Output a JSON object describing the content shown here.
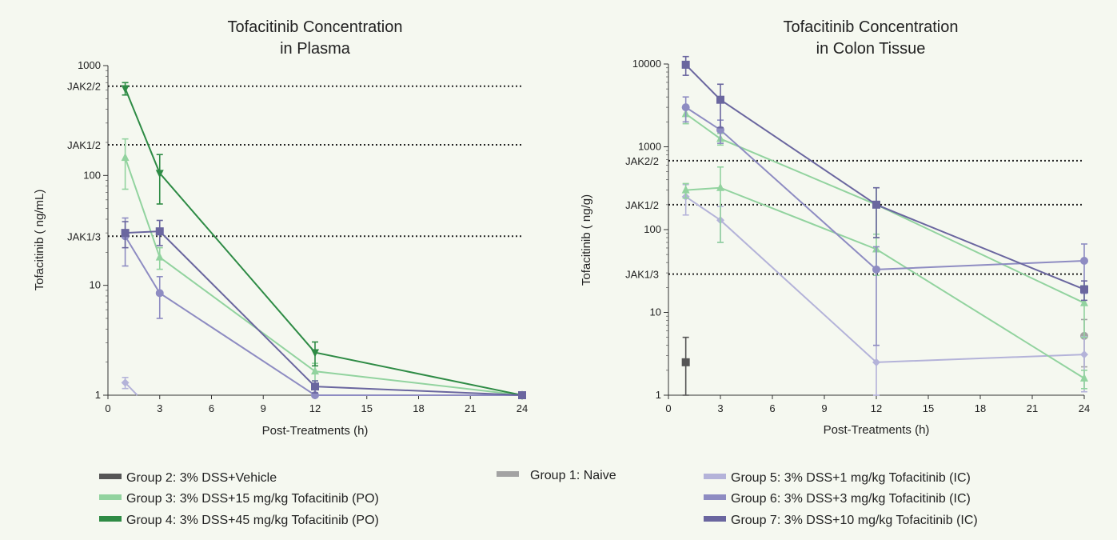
{
  "colors": {
    "group1": "#a3a3a3",
    "group2": "#555555",
    "group3": "#92d39f",
    "group4": "#2e8b45",
    "group5": "#b4b3d9",
    "group6": "#8e8cc2",
    "group7": "#6a669f"
  },
  "legend": [
    {
      "id": "group2",
      "label": "Group 2: 3% DSS+Vehicle"
    },
    {
      "id": "group3",
      "label": "Group 3: 3% DSS+15 mg/kg Tofacitinib (PO)"
    },
    {
      "id": "group4",
      "label": "Group 4: 3% DSS+45 mg/kg Tofacitinib (PO)"
    },
    {
      "id": "group1",
      "label": "Group 1: Naive"
    },
    {
      "id": "group5",
      "label": "Group 5: 3% DSS+1 mg/kg Tofacitinib (IC)"
    },
    {
      "id": "group6",
      "label": "Group 6: 3% DSS+3 mg/kg Tofacitinib (IC)"
    },
    {
      "id": "group7",
      "label": "Group 7: 3% DSS+10 mg/kg Tofacitinib (IC)"
    }
  ],
  "chart_data": [
    {
      "type": "line",
      "title": [
        "Tofacitinib Concentration",
        "in Plasma"
      ],
      "xlabel": "Post-Treatments (h)",
      "ylabel": "Tofacitinib ( ng/mL)",
      "xlim": [
        0,
        24
      ],
      "xticks": [
        0,
        3,
        6,
        9,
        12,
        15,
        18,
        21,
        24
      ],
      "ylim": [
        1,
        1000
      ],
      "yscale": "log",
      "yticks": [
        {
          "value": 1,
          "label": "1"
        },
        {
          "value": 10,
          "label": "10"
        },
        {
          "value": 100,
          "label": "100"
        },
        {
          "value": 1000,
          "label": "1000"
        }
      ],
      "reference_lines": [
        {
          "label": "JAK2/2",
          "value": 650
        },
        {
          "label": "JAK1/2",
          "value": 190
        },
        {
          "label": "JAK1/3",
          "value": 28
        }
      ],
      "series": [
        {
          "id": "group5",
          "marker": "diamond",
          "x": [
            1,
            1.7
          ],
          "y": [
            1.3,
            1.0
          ],
          "err": [
            0.15,
            null
          ]
        },
        {
          "id": "group3",
          "marker": "triangle",
          "x": [
            1,
            3,
            12,
            24
          ],
          "y": [
            145,
            18,
            1.65,
            1.0
          ],
          "err": [
            70,
            4,
            0.3,
            null
          ]
        },
        {
          "id": "group4",
          "marker": "triangle-down",
          "x": [
            1,
            3,
            12,
            24
          ],
          "y": [
            620,
            105,
            2.45,
            1.0
          ],
          "err": [
            80,
            50,
            0.6,
            null
          ]
        },
        {
          "id": "group6",
          "marker": "circle",
          "x": [
            1,
            3,
            12,
            24
          ],
          "y": [
            28,
            8.5,
            1.0,
            1.0
          ],
          "err": [
            13,
            3.5,
            null,
            null
          ]
        },
        {
          "id": "group7",
          "marker": "square",
          "x": [
            1,
            3,
            12,
            24
          ],
          "y": [
            30,
            31,
            1.2,
            1.0
          ],
          "err": [
            8,
            8,
            0.15,
            null
          ]
        }
      ]
    },
    {
      "type": "line",
      "title": [
        "Tofacitinib Concentration",
        "in Colon Tissue"
      ],
      "xlabel": "Post-Treatments (h)",
      "ylabel": "Tofacitinib ( ng/g)",
      "xlim": [
        0,
        24
      ],
      "xticks": [
        0,
        3,
        6,
        9,
        12,
        15,
        18,
        21,
        24
      ],
      "ylim": [
        1,
        10000
      ],
      "yscale": "log",
      "yticks": [
        {
          "value": 1,
          "label": "1"
        },
        {
          "value": 10,
          "label": "10"
        },
        {
          "value": 100,
          "label": "100"
        },
        {
          "value": 1000,
          "label": "1000"
        },
        {
          "value": 10000,
          "label": "10000"
        }
      ],
      "reference_lines": [
        {
          "label": "JAK2/2",
          "value": 680
        },
        {
          "label": "JAK1/2",
          "value": 200
        },
        {
          "label": "JAK1/3",
          "value": 29
        }
      ],
      "series": [
        {
          "id": "group2",
          "marker": "square",
          "x": [
            1
          ],
          "y": [
            2.5
          ],
          "err": [
            2.5
          ],
          "line": false
        },
        {
          "id": "group1",
          "marker": "circle",
          "x": [
            24
          ],
          "y": [
            5.2
          ],
          "err": [
            3
          ],
          "line": false
        },
        {
          "id": "group5",
          "marker": "diamond",
          "x": [
            1,
            3,
            12,
            24
          ],
          "y": [
            250,
            130,
            2.5,
            3.1
          ],
          "err": [
            100,
            60,
            1.5,
            2
          ]
        },
        {
          "id": "group3",
          "marker": "triangle",
          "x": [
            1,
            3,
            12,
            24
          ],
          "y": [
            2500,
            1250,
            200,
            13
          ],
          "err": [
            600,
            200,
            120,
            8
          ]
        },
        {
          "id": "group3",
          "marker": "triangle",
          "x": [
            1,
            3,
            12,
            24
          ],
          "y": [
            300,
            320,
            58,
            1.6
          ],
          "err": [
            60,
            250,
            30,
            0.4
          ]
        },
        {
          "id": "group6",
          "marker": "circle",
          "x": [
            1,
            3,
            12,
            24
          ],
          "y": [
            3000,
            1600,
            33,
            42
          ],
          "err": [
            1000,
            500,
            29,
            25
          ]
        },
        {
          "id": "group7",
          "marker": "square",
          "x": [
            1,
            3,
            12,
            24
          ],
          "y": [
            9800,
            3700,
            200,
            19
          ],
          "err": [
            2500,
            2000,
            120,
            5
          ]
        }
      ]
    }
  ]
}
